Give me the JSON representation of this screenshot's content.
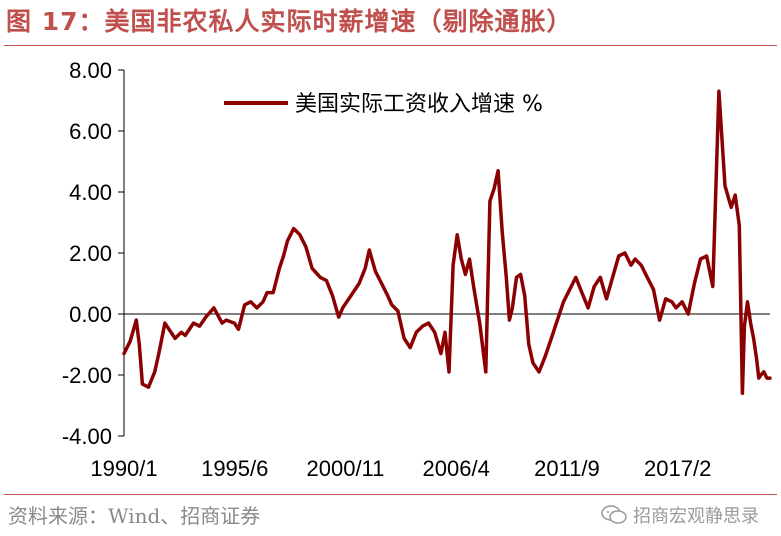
{
  "header": {
    "title": "图 17：美国非农私人实际时薪增速（剔除通胀）"
  },
  "footer": {
    "source": "资料来源：Wind、招商证券",
    "brand": "招商宏观静思录"
  },
  "colors": {
    "accent": "#c0504d",
    "series": "#8b0000"
  },
  "chart_data": {
    "type": "line",
    "title": "图 17：美国非农私人实际时薪增速（剔除通胀）",
    "xlabel": "",
    "ylabel": "",
    "ylim": [
      -4,
      8
    ],
    "yticks": [
      "8.00",
      "6.00",
      "4.00",
      "2.00",
      "0.00",
      "-2.00",
      "-4.00"
    ],
    "xticks": [
      "1990/1",
      "1995/6",
      "2000/11",
      "2006/4",
      "2011/9",
      "2017/2"
    ],
    "xlim": [
      1990.0,
      2021.6
    ],
    "legend_position": "top",
    "grid": false,
    "series": [
      {
        "name": "美国实际工资收入增速 %",
        "color": "#8b0000",
        "x": [
          1990.0,
          1990.3,
          1990.6,
          1990.75,
          1990.9,
          1991.2,
          1991.5,
          1991.7,
          1992.0,
          1992.2,
          1992.5,
          1992.8,
          1993.0,
          1993.4,
          1993.7,
          1994.0,
          1994.4,
          1994.8,
          1995.0,
          1995.4,
          1995.6,
          1995.9,
          1996.2,
          1996.5,
          1996.8,
          1997.0,
          1997.3,
          1997.6,
          1997.8,
          1998.0,
          1998.3,
          1998.6,
          1998.9,
          1999.2,
          1999.6,
          1999.9,
          2000.2,
          2000.5,
          2000.7,
          2000.9,
          2001.2,
          2001.5,
          2001.8,
          2002.0,
          2002.3,
          2002.6,
          2002.9,
          2003.1,
          2003.4,
          2003.7,
          2004.0,
          2004.3,
          2004.6,
          2004.9,
          2005.2,
          2005.5,
          2005.7,
          2005.9,
          2006.1,
          2006.3,
          2006.5,
          2006.7,
          2006.9,
          2007.1,
          2007.4,
          2007.7,
          2007.9,
          2008.1,
          2008.3,
          2008.5,
          2008.7,
          2008.85,
          2009.0,
          2009.2,
          2009.4,
          2009.6,
          2009.8,
          2010.0,
          2010.3,
          2010.6,
          2010.9,
          2011.2,
          2011.5,
          2011.8,
          2012.1,
          2012.4,
          2012.7,
          2013.0,
          2013.3,
          2013.6,
          2013.9,
          2014.2,
          2014.5,
          2014.8,
          2015.0,
          2015.3,
          2015.6,
          2015.9,
          2016.2,
          2016.5,
          2016.8,
          2017.0,
          2017.3,
          2017.6,
          2017.9,
          2018.2,
          2018.5,
          2018.8,
          2019.1,
          2019.4,
          2019.7,
          2019.9,
          2020.1,
          2020.25,
          2020.35,
          2020.5,
          2020.65,
          2020.8,
          2020.95,
          2021.05,
          2021.15,
          2021.3,
          2021.45,
          2021.6
        ],
        "y": [
          -1.3,
          -0.9,
          -0.2,
          -1.0,
          -2.3,
          -2.4,
          -1.9,
          -1.3,
          -0.3,
          -0.5,
          -0.8,
          -0.6,
          -0.7,
          -0.3,
          -0.4,
          -0.1,
          0.2,
          -0.3,
          -0.2,
          -0.3,
          -0.5,
          0.3,
          0.4,
          0.2,
          0.4,
          0.7,
          0.7,
          1.5,
          1.9,
          2.4,
          2.8,
          2.6,
          2.2,
          1.5,
          1.2,
          1.1,
          0.6,
          -0.1,
          0.2,
          0.4,
          0.7,
          1.0,
          1.5,
          2.1,
          1.4,
          1.0,
          0.6,
          0.3,
          0.1,
          -0.8,
          -1.1,
          -0.6,
          -0.4,
          -0.3,
          -0.6,
          -1.3,
          -0.6,
          -1.9,
          1.6,
          2.6,
          1.8,
          1.3,
          1.8,
          0.9,
          -0.3,
          -1.9,
          3.7,
          4.1,
          4.7,
          2.7,
          1.2,
          -0.2,
          0.2,
          1.2,
          1.3,
          0.6,
          -1.0,
          -1.6,
          -1.9,
          -1.4,
          -0.8,
          -0.2,
          0.4,
          0.8,
          1.2,
          0.7,
          0.2,
          0.9,
          1.2,
          0.5,
          1.2,
          1.9,
          2.0,
          1.6,
          1.8,
          1.6,
          1.2,
          0.8,
          -0.2,
          0.5,
          0.4,
          0.2,
          0.4,
          0.0,
          1.0,
          1.8,
          1.9,
          0.9,
          7.3,
          4.2,
          3.5,
          3.9,
          2.9,
          -2.6,
          -0.4,
          0.4,
          -0.3,
          -0.8,
          -1.5,
          -2.1,
          -2.0,
          -1.9,
          -2.1,
          -2.1
        ]
      }
    ]
  }
}
